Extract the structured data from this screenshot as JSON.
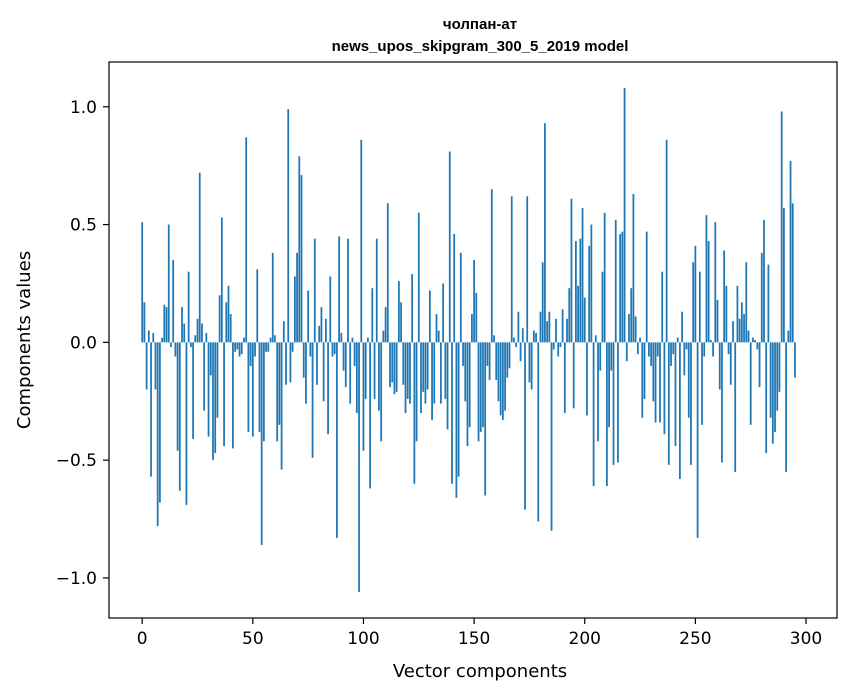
{
  "chart_data": {
    "type": "bar",
    "title": "чолпан-ат",
    "subtitle": "news_upos_skipgram_300_5_2019 model",
    "xlabel": "Vector components",
    "ylabel": "Components values",
    "xlim": [
      -15,
      314
    ],
    "ylim": [
      -1.17,
      1.19
    ],
    "xticks": [
      0,
      50,
      100,
      150,
      200,
      250,
      300
    ],
    "yticks": [
      -1.0,
      -0.5,
      0.0,
      0.5,
      1.0
    ],
    "ytick_labels": [
      "−1.0",
      "−0.5",
      "0.0",
      "0.5",
      "1.0"
    ],
    "bar_color": "#1f77b4",
    "categories_count": 300,
    "values": [
      0.51,
      0.17,
      -0.2,
      0.05,
      -0.57,
      0.04,
      -0.2,
      -0.78,
      -0.68,
      0.02,
      0.16,
      0.15,
      0.5,
      -0.02,
      0.35,
      -0.06,
      -0.46,
      -0.63,
      0.15,
      0.08,
      -0.69,
      0.3,
      -0.02,
      -0.41,
      0.03,
      0.1,
      0.72,
      0.08,
      -0.29,
      0.04,
      -0.4,
      -0.14,
      -0.5,
      -0.47,
      -0.32,
      0.2,
      0.53,
      -0.44,
      0.17,
      0.24,
      0.12,
      -0.45,
      -0.04,
      -0.03,
      -0.06,
      -0.05,
      0.02,
      0.87,
      -0.38,
      -0.1,
      -0.4,
      -0.06,
      0.31,
      -0.38,
      -0.86,
      -0.42,
      -0.04,
      -0.04,
      0.02,
      0.38,
      0.03,
      -0.42,
      -0.35,
      -0.54,
      0.09,
      -0.18,
      0.99,
      -0.17,
      -0.04,
      0.28,
      0.38,
      0.79,
      0.71,
      -0.15,
      -0.26,
      0.22,
      -0.06,
      -0.49,
      0.44,
      -0.18,
      0.07,
      0.15,
      -0.25,
      0.1,
      -0.39,
      0.28,
      -0.06,
      -0.05,
      -0.83,
      0.45,
      0.04,
      -0.12,
      -0.19,
      0.44,
      -0.26,
      0.02,
      -0.1,
      -0.3,
      -1.06,
      0.86,
      -0.46,
      -0.24,
      0.02,
      -0.62,
      0.23,
      -0.24,
      0.44,
      -0.29,
      -0.42,
      0.05,
      0.15,
      0.59,
      -0.19,
      -0.17,
      -0.22,
      -0.21,
      0.26,
      0.17,
      -0.18,
      -0.3,
      -0.24,
      -0.26,
      0.29,
      -0.6,
      -0.42,
      0.55,
      -0.3,
      -0.21,
      -0.26,
      -0.2,
      0.22,
      -0.33,
      -0.26,
      0.12,
      0.05,
      -0.26,
      0.25,
      -0.24,
      -0.37,
      0.81,
      -0.6,
      0.46,
      -0.66,
      -0.57,
      0.38,
      -0.1,
      -0.25,
      -0.44,
      -0.36,
      0.12,
      0.35,
      0.21,
      -0.42,
      -0.38,
      -0.36,
      -0.65,
      -0.1,
      -0.16,
      0.65,
      0.03,
      -0.16,
      -0.25,
      -0.31,
      -0.33,
      -0.29,
      -0.15,
      -0.11,
      0.62,
      0.02,
      -0.02,
      0.13,
      -0.08,
      0.06,
      -0.71,
      0.62,
      -0.17,
      -0.2,
      0.05,
      0.04,
      -0.76,
      0.13,
      0.34,
      0.93,
      0.09,
      0.13,
      -0.8,
      -0.03,
      0.1,
      -0.06,
      -0.02,
      0.14,
      -0.3,
      0.1,
      0.23,
      0.61,
      -0.28,
      0.43,
      0.24,
      0.44,
      0.57,
      0.19,
      -0.31,
      0.41,
      0.5,
      -0.61,
      0.03,
      -0.42,
      -0.12,
      0.3,
      0.55,
      -0.61,
      -0.36,
      -0.12,
      -0.52,
      0.52,
      -0.51,
      0.46,
      0.47,
      1.08,
      -0.08,
      0.12,
      0.23,
      0.63,
      0.11,
      -0.05,
      0.02,
      -0.32,
      -0.24,
      0.47,
      -0.06,
      -0.1,
      -0.25,
      -0.34,
      -0.06,
      -0.34,
      0.3,
      -0.39,
      0.86,
      -0.52,
      -0.1,
      -0.05,
      -0.44,
      0.02,
      -0.58,
      0.13,
      -0.14,
      -0.03,
      -0.32,
      -0.52,
      0.34,
      0.41,
      -0.83,
      0.3,
      -0.35,
      -0.06,
      0.54,
      0.43,
      0.01,
      -0.06,
      0.51,
      0.18,
      -0.2,
      -0.51,
      0.39,
      0.24,
      -0.05,
      -0.18,
      0.09,
      -0.55,
      0.24,
      0.1,
      0.17,
      0.12,
      0.34,
      0.05,
      -0.35,
      0.02,
      0.01,
      -0.03,
      -0.19,
      0.38,
      0.52,
      -0.47,
      0.33,
      -0.32,
      -0.43,
      -0.38,
      -0.29,
      -0.21,
      0.98,
      0.57,
      -0.55,
      0.05,
      0.77,
      0.59,
      -0.15
    ]
  }
}
